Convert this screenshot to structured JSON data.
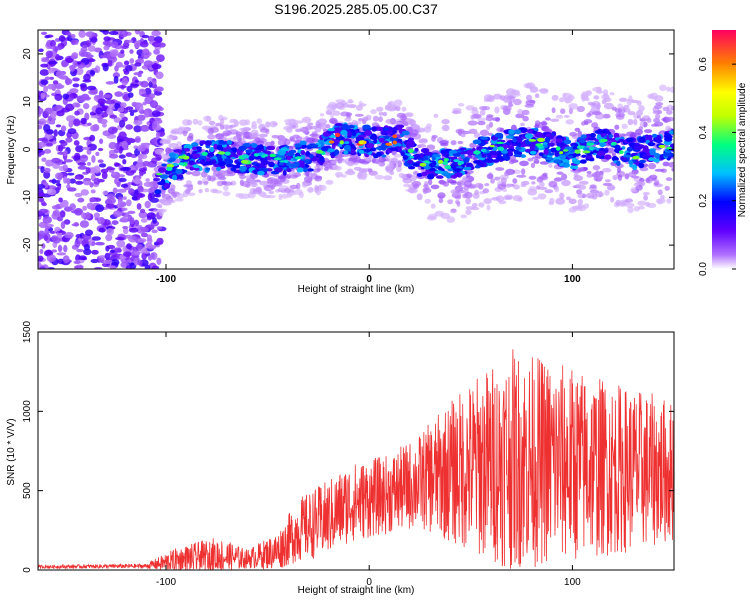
{
  "figure_title": "S196.2025.285.05.00.C37",
  "chart_data": [
    {
      "type": "heatmap",
      "name": "spectrogram",
      "xlabel": "Height of straight line (km)",
      "ylabel": "Frequency (Hz)",
      "xlim": [
        -163,
        150
      ],
      "ylim": [
        -25,
        25
      ],
      "x_ticks": [
        -100,
        0,
        100
      ],
      "y_ticks": [
        -20,
        -10,
        0,
        10,
        20
      ],
      "colorbar": {
        "label": "Normalized spectral amplitude",
        "range": [
          0,
          0.7
        ],
        "ticks": [
          "0.0",
          "0.2",
          "0.4",
          "0.6"
        ],
        "tick_values": [
          0.0,
          0.2,
          0.4,
          0.6
        ],
        "colors": [
          "#ffffff",
          "#b070ff",
          "#6000ff",
          "#0000ff",
          "#00c0ff",
          "#00ff80",
          "#c0ff00",
          "#ffff00",
          "#ff8000",
          "#ff0060"
        ]
      },
      "noise_region_end_x": -104,
      "ridge": [
        {
          "x": -104,
          "y": -6
        },
        {
          "x": -90,
          "y": -2
        },
        {
          "x": -75,
          "y": -1
        },
        {
          "x": -60,
          "y": -2
        },
        {
          "x": -40,
          "y": -2
        },
        {
          "x": -25,
          "y": -1
        },
        {
          "x": -15,
          "y": 2.5
        },
        {
          "x": -5,
          "y": 2
        },
        {
          "x": 5,
          "y": 1.5
        },
        {
          "x": 15,
          "y": 2
        },
        {
          "x": 25,
          "y": -3
        },
        {
          "x": 40,
          "y": -3
        },
        {
          "x": 60,
          "y": 0
        },
        {
          "x": 80,
          "y": 2
        },
        {
          "x": 100,
          "y": -1
        },
        {
          "x": 115,
          "y": 1
        },
        {
          "x": 130,
          "y": -1
        },
        {
          "x": 145,
          "y": 1
        }
      ]
    },
    {
      "type": "line",
      "name": "snr",
      "xlabel": "Height of straight line (km)",
      "ylabel": "SNR (10 * V/V)",
      "xlim": [
        -163,
        150
      ],
      "ylim": [
        0,
        1500
      ],
      "x_ticks": [
        -100,
        0,
        100
      ],
      "y_ticks": [
        0,
        500,
        1000,
        1500
      ],
      "color": "#ee3030",
      "envelope": [
        {
          "x": -163,
          "mean": 20,
          "amp": 10
        },
        {
          "x": -110,
          "mean": 25,
          "amp": 15
        },
        {
          "x": -95,
          "mean": 60,
          "amp": 80
        },
        {
          "x": -75,
          "mean": 90,
          "amp": 120
        },
        {
          "x": -60,
          "mean": 70,
          "amp": 60
        },
        {
          "x": -45,
          "mean": 120,
          "amp": 120
        },
        {
          "x": -35,
          "mean": 250,
          "amp": 200
        },
        {
          "x": -20,
          "mean": 330,
          "amp": 240
        },
        {
          "x": -10,
          "mean": 420,
          "amp": 250
        },
        {
          "x": 10,
          "mean": 480,
          "amp": 250
        },
        {
          "x": 25,
          "mean": 560,
          "amp": 300
        },
        {
          "x": 35,
          "mean": 600,
          "amp": 400
        },
        {
          "x": 50,
          "mean": 650,
          "amp": 550
        },
        {
          "x": 70,
          "mean": 700,
          "amp": 700
        },
        {
          "x": 90,
          "mean": 680,
          "amp": 650
        },
        {
          "x": 120,
          "mean": 640,
          "amp": 550
        },
        {
          "x": 150,
          "mean": 620,
          "amp": 450
        }
      ]
    }
  ]
}
